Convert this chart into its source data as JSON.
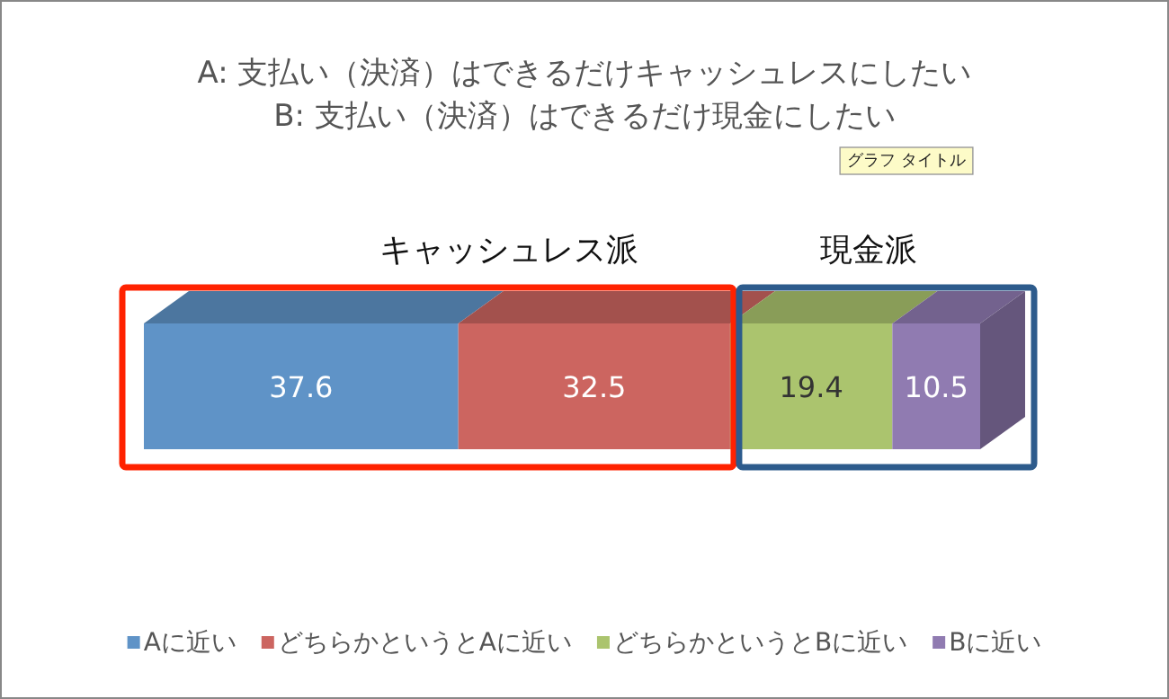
{
  "chart_data": {
    "type": "bar",
    "orientation": "horizontal",
    "stacked": true,
    "title": "A: 支払い（決済）はできるだけキャッシュレスにしたい",
    "subtitle": "B: 支払い（決済）はできるだけ現金にしたい",
    "categories": [
      null
    ],
    "series": [
      {
        "name": "Aに近い",
        "color": "#5f93c7",
        "values": [
          37.6
        ]
      },
      {
        "name": "どちらかというとAに近い",
        "color": "#cc6560",
        "values": [
          32.5
        ]
      },
      {
        "name": "どちらかというとBに近い",
        "color": "#abc46e",
        "values": [
          19.4
        ]
      },
      {
        "name": "Bに近い",
        "color": "#907bb1",
        "values": [
          10.5
        ]
      }
    ],
    "data_labels": true,
    "annotations": [
      "グラフ タイトル",
      "キャッシュレス派",
      "現金派"
    ],
    "legend": "bottom"
  }
}
